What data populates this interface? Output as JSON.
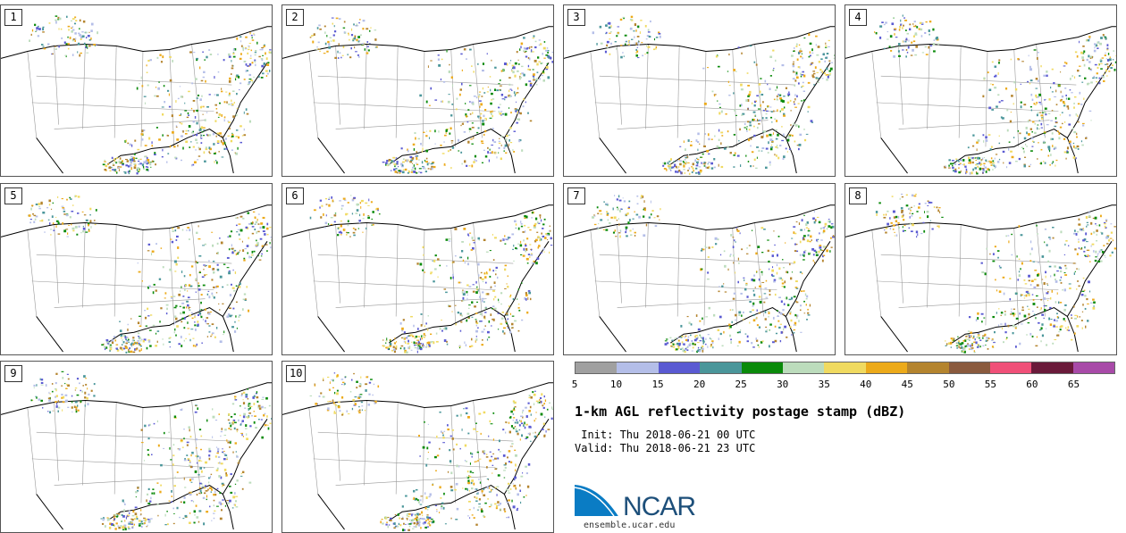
{
  "panels": [
    "1",
    "2",
    "3",
    "4",
    "5",
    "6",
    "7",
    "8",
    "9",
    "10"
  ],
  "colorbar": {
    "colors": [
      "#a0a0a0",
      "#b4bee8",
      "#5a5ad2",
      "#4a969a",
      "#0a8a0a",
      "#bcdcbc",
      "#f0da60",
      "#ecaa1a",
      "#b4842e",
      "#8a5a3e",
      "#f05078",
      "#6a1a3a",
      "#a84aa8"
    ],
    "ticks": [
      "5",
      "10",
      "15",
      "20",
      "25",
      "30",
      "35",
      "40",
      "45",
      "50",
      "55",
      "60",
      "65"
    ]
  },
  "title": "1-km AGL reflectivity postage stamp (dBZ)",
  "init": " Init: Thu 2018-06-21 00 UTC",
  "valid": "Valid: Thu 2018-06-21 23 UTC",
  "logo_text": "NCAR",
  "url": "ensemble.ucar.edu"
}
